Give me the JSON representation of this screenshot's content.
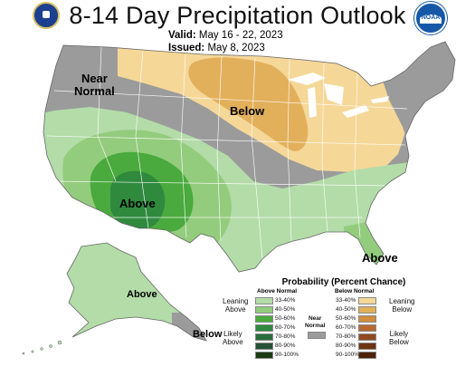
{
  "title": "8-14 Day Precipitation Outlook",
  "valid_label": "Valid:",
  "valid_value": "May 16 - 22, 2023",
  "issued_label": "Issued:",
  "issued_value": "May 8, 2023",
  "map_labels": {
    "near_normal": "Near\nNormal",
    "below_midwest": "Below",
    "above_southwest": "Above",
    "above_florida": "Above",
    "above_alaska": "Above",
    "below_alaska": "Below"
  },
  "logos": {
    "left": "doc-seal-icon",
    "right": "noaa-logo-icon",
    "noaa_text": "NOAA"
  },
  "legend": {
    "title": "Probability (Percent Chance)",
    "above_header": "Above Normal",
    "below_header": "Below Normal",
    "near_normal": "Near\nNormal",
    "leaning_above": "Leaning\nAbove",
    "likely_above": "Likely\nAbove",
    "leaning_below": "Leaning\nBelow",
    "likely_below": "Likely\nBelow",
    "ranges": [
      "33-40%",
      "40-50%",
      "50-60%",
      "60-70%",
      "70-80%",
      "80-90%",
      "90-100%"
    ],
    "above_colors": [
      "#b3dca8",
      "#93cc7d",
      "#4aaa3d",
      "#2f8a3e",
      "#296e3d",
      "#25503a",
      "#1d3a12"
    ],
    "below_colors": [
      "#f5d798",
      "#e2b05b",
      "#d08d3e",
      "#b7682f",
      "#914a1f",
      "#6e3310",
      "#4d2209"
    ],
    "near_color": "#9b9b9b"
  },
  "colors": {
    "ocean": "#ffffff",
    "land_default": "#ffffff",
    "state_lines": "#ffffff"
  }
}
